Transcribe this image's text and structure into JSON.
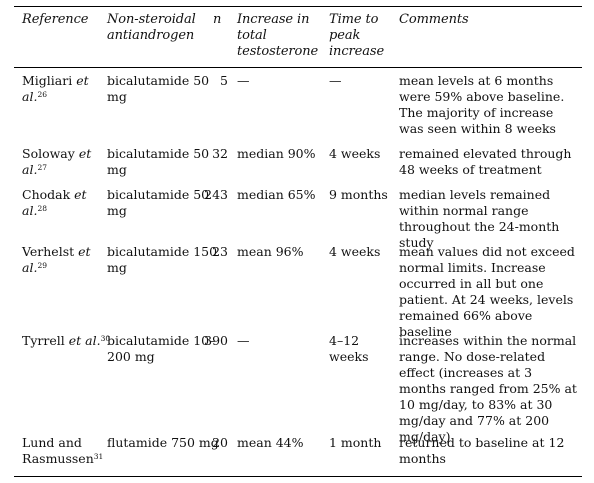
{
  "headers": {
    "reference": "Reference",
    "antiandrogen": "Non-steroidal antiandrogen",
    "n": "n",
    "increase": "Increase in total testosterone",
    "time": "Time to peak increase",
    "comments": "Comments"
  },
  "rows": [
    {
      "author": "Migliari",
      "etal": "et al.",
      "ref": "26",
      "antiandrogen": "bicalutamide 50 mg",
      "n": "5",
      "increase": "—",
      "time": "—",
      "comments": "mean levels at 6 months were 59% above baseline. The majority of increase was seen within 8 weeks"
    },
    {
      "author": "Soloway",
      "etal": "et al.",
      "ref": "27",
      "antiandrogen": "bicalutamide 50 mg",
      "n": "32",
      "increase": "median 90%",
      "time": "4 weeks",
      "comments": "remained elevated through 48 weeks of treatment"
    },
    {
      "author": "Chodak",
      "etal": "et al.",
      "ref": "28",
      "antiandrogen": "bicalutamide 50 mg",
      "n": "243",
      "increase": "median 65%",
      "time": "9 months",
      "comments": "median levels remained within normal range throughout the 24-month study"
    },
    {
      "author": "Verhelst",
      "etal": "et al.",
      "ref": "29",
      "antiandrogen": "bicalutamide 150 mg",
      "n": "23",
      "increase": "mean 96%",
      "time": "4 weeks",
      "comments": "mean values did not exceed normal limits. Increase occurred in all but one patient. At 24 weeks, levels remained 66% above baseline"
    },
    {
      "author": "Tyrrell",
      "etal": "et al.",
      "ref": "30",
      "antiandrogen": "bicalutamide 10–200 mg",
      "n": "390",
      "increase": "—",
      "time": "4–12 weeks",
      "comments": "increases within the normal range. No dose-related effect (increases at 3 months ranged from 25% at 10 mg/day, to 83% at 30 mg/day and 77% at 200 mg/day)"
    },
    {
      "author": "Lund and Rasmussen",
      "etal": "",
      "ref": "31",
      "antiandrogen": "flutamide 750 mg",
      "n": "20",
      "increase": "mean 44%",
      "time": "1 month",
      "comments": "returned to baseline at 12 months"
    }
  ]
}
